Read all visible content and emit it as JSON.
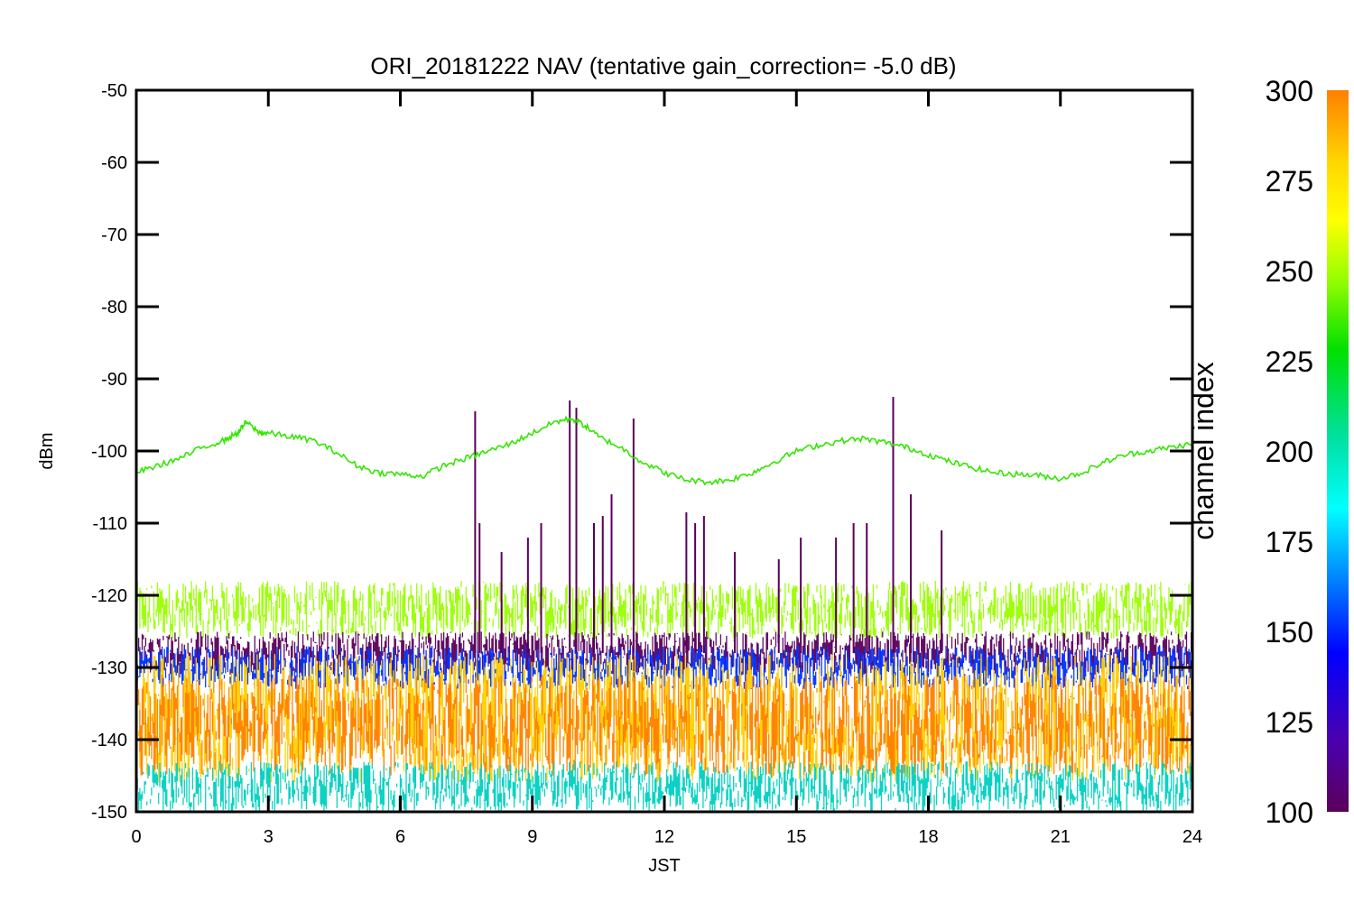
{
  "chart_data": {
    "type": "line",
    "title": "ORI_20181222 NAV (tentative gain_correction= -5.0 dB)",
    "xlabel": "JST",
    "ylabel": "dBm",
    "xlim": [
      0,
      24
    ],
    "ylim": [
      -150,
      -50
    ],
    "x_ticks": [
      "0",
      "3",
      "6",
      "9",
      "12",
      "15",
      "18",
      "21",
      "24"
    ],
    "y_ticks": [
      "-50",
      "-60",
      "-70",
      "-80",
      "-90",
      "-100",
      "-110",
      "-120",
      "-130",
      "-140",
      "-150"
    ],
    "colorbar": {
      "label": "channel index",
      "range": [
        100,
        300
      ],
      "ticks": [
        "300",
        "275",
        "250",
        "225",
        "200",
        "175",
        "150",
        "125",
        "100"
      ],
      "colors": [
        "#ff7f00",
        "#ffd700",
        "#ffff00",
        "#99ff00",
        "#00e000",
        "#00e0a0",
        "#00ffff",
        "#0080ff",
        "#0000ff",
        "#4b00b0",
        "#5a005a"
      ]
    },
    "series": [
      {
        "channel": 240,
        "color": "#33e600",
        "x": [
          0,
          0.5,
          1,
          1.5,
          2,
          2.3,
          2.5,
          2.8,
          3,
          3.5,
          4,
          4.5,
          5,
          5.5,
          6,
          6.5,
          7,
          7.5,
          8,
          8.5,
          9,
          9.5,
          9.9,
          10.2,
          10.5,
          11,
          11.5,
          12,
          12.5,
          13,
          13.5,
          14,
          14.5,
          15,
          15.5,
          16,
          16.5,
          17,
          17.5,
          18,
          18.5,
          19,
          19.5,
          20,
          20.5,
          21,
          21.5,
          22,
          22.5,
          23,
          23.5,
          24
        ],
        "y": [
          -103,
          -102,
          -101,
          -99.5,
          -98.5,
          -97.5,
          -96,
          -97.5,
          -97.5,
          -98,
          -98.5,
          -100,
          -102,
          -103,
          -103.2,
          -103.5,
          -102,
          -101,
          -100,
          -99,
          -97.5,
          -96,
          -95.5,
          -96.5,
          -98,
          -99.5,
          -101.5,
          -103,
          -104,
          -104.3,
          -104,
          -103,
          -101.5,
          -100,
          -99.2,
          -98.6,
          -98.3,
          -98.8,
          -99.5,
          -100.5,
          -101.5,
          -102.3,
          -103,
          -103.2,
          -103.4,
          -103.8,
          -103,
          -101.5,
          -100.5,
          -100,
          -99.5,
          -99
        ]
      },
      {
        "channel": 255,
        "color": "#99ff00",
        "band": [
          -126,
          -118
        ]
      },
      {
        "channel": 110,
        "color": "#5a005a",
        "band": [
          -131,
          -125
        ]
      },
      {
        "channel": 140,
        "color": "#0030ff",
        "band": [
          -133,
          -127
        ]
      },
      {
        "channel": 275,
        "color": "#ffd000",
        "band": [
          -146,
          -128
        ]
      },
      {
        "channel": 295,
        "color": "#ff8000",
        "band": [
          -145,
          -131
        ]
      },
      {
        "channel": 180,
        "color": "#00d0c0",
        "band": [
          -150,
          -143
        ]
      }
    ],
    "spikes": {
      "channel": 110,
      "color": "#5a005a",
      "x": [
        7.7,
        7.8,
        8.3,
        8.9,
        9.2,
        9.85,
        10.0,
        10.4,
        10.6,
        10.8,
        11.3,
        12.5,
        12.7,
        12.9,
        13.6,
        14.6,
        15.1,
        15.9,
        16.3,
        16.6,
        17.2,
        17.6,
        18.3
      ],
      "y": [
        -94.5,
        -110,
        -114,
        -112,
        -110,
        -93,
        -94,
        -110,
        -109,
        -106,
        -95.5,
        -108.5,
        -110,
        -109,
        -114,
        -115,
        -112,
        -112,
        -110,
        -110,
        -92.5,
        -106,
        -111
      ]
    }
  }
}
